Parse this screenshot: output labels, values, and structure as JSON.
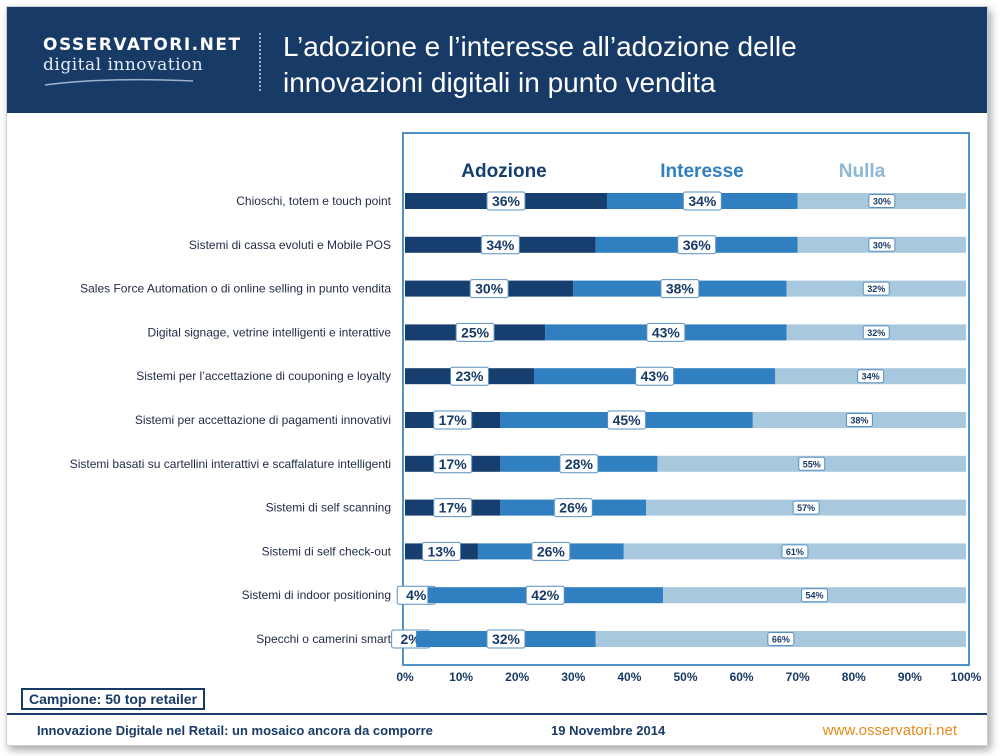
{
  "header": {
    "logo_top": "OSSERVATORI.NET",
    "logo_bottom": "digital innovation",
    "title_line1": "L’adozione e l’interesse all’adozione delle",
    "title_line2": "innovazioni digitali in punto vendita"
  },
  "colors": {
    "header_bg": "#173a66",
    "adozione": "#163e6e",
    "interesse": "#2f7fc1",
    "nulla": "#a8c8de",
    "frame": "#4f93c9",
    "label_border": "#5a8fc0",
    "footer_url": "#e88a1a"
  },
  "chart_data": {
    "type": "bar",
    "orientation": "horizontal",
    "stacked": true,
    "title": "L’adozione e l’interesse all’adozione delle innovazioni digitali in punto vendita",
    "legend_position": "top",
    "xlim": [
      0,
      100
    ],
    "x_ticks": [
      "0%",
      "10%",
      "20%",
      "30%",
      "40%",
      "50%",
      "60%",
      "70%",
      "80%",
      "90%",
      "100%"
    ],
    "categories": [
      "Chioschi, totem e touch point",
      "Sistemi di cassa evoluti e Mobile POS",
      "Sales Force Automation o di online selling in punto vendita",
      "Digital signage, vetrine intelligenti e interattive",
      "Sistemi per l’accettazione di couponing e loyalty",
      "Sistemi per accettazione di pagamenti innovativi",
      "Sistemi basati su cartellini interattivi e scaffalature intelligenti",
      "Sistemi di self scanning",
      "Sistemi di self check-out",
      "Sistemi di indoor positioning",
      "Specchi o camerini smart"
    ],
    "series": [
      {
        "name": "Adozione",
        "values": [
          36,
          34,
          30,
          25,
          23,
          17,
          17,
          17,
          13,
          4,
          2
        ]
      },
      {
        "name": "Interesse",
        "values": [
          34,
          36,
          38,
          43,
          43,
          45,
          28,
          26,
          26,
          42,
          32
        ]
      },
      {
        "name": "Nulla",
        "values": [
          30,
          30,
          32,
          32,
          34,
          38,
          55,
          57,
          61,
          54,
          66
        ]
      }
    ]
  },
  "sample_label": "Campione: 50 top retailer",
  "footer": {
    "left_text": "Innovazione Digitale nel Retail: un mosaico ancora da comporre",
    "date": "19 Novembre 2014",
    "url": "www.osservatori.net"
  }
}
